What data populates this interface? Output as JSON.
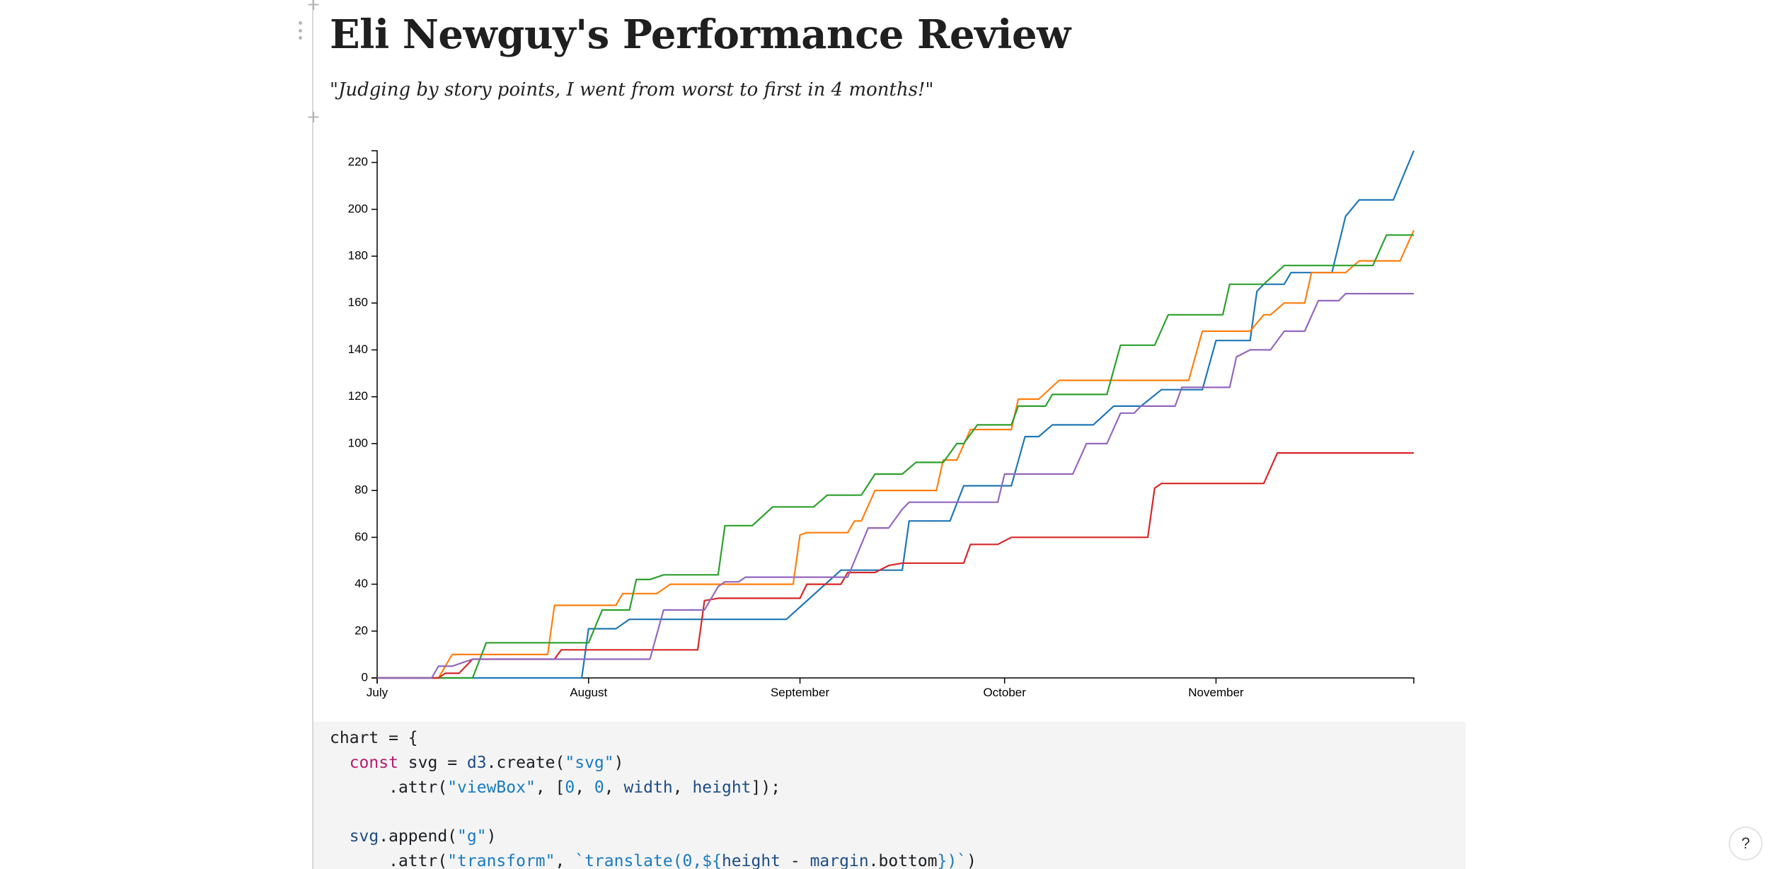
{
  "page": {
    "title": "Eli Newguy's Performance Review",
    "quote": "\"Judging by story points, I went from worst to first in 4 months!\""
  },
  "help": {
    "label": "?"
  },
  "colors": {
    "series": [
      "#1f77b4",
      "#ff7f0e",
      "#2ca02c",
      "#d62728",
      "#9467bd"
    ],
    "code_keyword": "#b41e70",
    "code_string": "#1a7bbf"
  },
  "chart_data": {
    "type": "line",
    "step": true,
    "title": "",
    "xlabel": "",
    "ylabel": "",
    "x_domain": [
      "2019-07-01",
      "2019-11-30"
    ],
    "ylim": [
      0,
      225
    ],
    "y_ticks": [
      0,
      20,
      40,
      60,
      80,
      100,
      120,
      140,
      160,
      180,
      200,
      220
    ],
    "x_ticks": [
      {
        "date": "2019-07-01",
        "label": "July"
      },
      {
        "date": "2019-08-01",
        "label": "August"
      },
      {
        "date": "2019-09-01",
        "label": "September"
      },
      {
        "date": "2019-10-01",
        "label": "October"
      },
      {
        "date": "2019-11-01",
        "label": "November"
      }
    ],
    "series": [
      {
        "color": "#1f77b4",
        "points": [
          [
            "2019-07-01",
            0
          ],
          [
            "2019-07-31",
            0
          ],
          [
            "2019-08-01",
            21
          ],
          [
            "2019-08-05",
            21
          ],
          [
            "2019-08-07",
            25
          ],
          [
            "2019-08-30",
            25
          ],
          [
            "2019-09-07",
            46
          ],
          [
            "2019-09-14",
            46
          ],
          [
            "2019-09-16",
            46
          ],
          [
            "2019-09-17",
            67
          ],
          [
            "2019-09-23",
            67
          ],
          [
            "2019-09-25",
            82
          ],
          [
            "2019-10-02",
            82
          ],
          [
            "2019-10-04",
            103
          ],
          [
            "2019-10-06",
            103
          ],
          [
            "2019-10-08",
            108
          ],
          [
            "2019-10-14",
            108
          ],
          [
            "2019-10-17",
            116
          ],
          [
            "2019-10-21",
            116
          ],
          [
            "2019-10-24",
            123
          ],
          [
            "2019-10-30",
            123
          ],
          [
            "2019-11-01",
            144
          ],
          [
            "2019-11-06",
            144
          ],
          [
            "2019-11-07",
            165
          ],
          [
            "2019-11-08",
            168
          ],
          [
            "2019-11-11",
            168
          ],
          [
            "2019-11-12",
            173
          ],
          [
            "2019-11-18",
            173
          ],
          [
            "2019-11-20",
            197
          ],
          [
            "2019-11-22",
            204
          ],
          [
            "2019-11-27",
            204
          ],
          [
            "2019-11-30",
            225
          ]
        ]
      },
      {
        "color": "#ff7f0e",
        "points": [
          [
            "2019-07-01",
            0
          ],
          [
            "2019-07-10",
            0
          ],
          [
            "2019-07-12",
            10
          ],
          [
            "2019-07-26",
            10
          ],
          [
            "2019-07-27",
            31
          ],
          [
            "2019-08-05",
            31
          ],
          [
            "2019-08-06",
            36
          ],
          [
            "2019-08-11",
            36
          ],
          [
            "2019-08-13",
            40
          ],
          [
            "2019-08-31",
            40
          ],
          [
            "2019-09-01",
            61
          ],
          [
            "2019-09-02",
            62
          ],
          [
            "2019-09-08",
            62
          ],
          [
            "2019-09-09",
            67
          ],
          [
            "2019-09-10",
            67
          ],
          [
            "2019-09-12",
            80
          ],
          [
            "2019-09-21",
            80
          ],
          [
            "2019-09-22",
            93
          ],
          [
            "2019-09-24",
            93
          ],
          [
            "2019-09-26",
            106
          ],
          [
            "2019-10-02",
            106
          ],
          [
            "2019-10-03",
            119
          ],
          [
            "2019-10-06",
            119
          ],
          [
            "2019-10-09",
            127
          ],
          [
            "2019-10-28",
            127
          ],
          [
            "2019-10-30",
            148
          ],
          [
            "2019-11-06",
            148
          ],
          [
            "2019-11-08",
            155
          ],
          [
            "2019-11-09",
            155
          ],
          [
            "2019-11-11",
            160
          ],
          [
            "2019-11-14",
            160
          ],
          [
            "2019-11-15",
            173
          ],
          [
            "2019-11-20",
            173
          ],
          [
            "2019-11-22",
            178
          ],
          [
            "2019-11-28",
            178
          ],
          [
            "2019-11-30",
            191
          ]
        ]
      },
      {
        "color": "#2ca02c",
        "points": [
          [
            "2019-07-01",
            0
          ],
          [
            "2019-07-15",
            0
          ],
          [
            "2019-07-17",
            15
          ],
          [
            "2019-08-01",
            15
          ],
          [
            "2019-08-03",
            29
          ],
          [
            "2019-08-07",
            29
          ],
          [
            "2019-08-08",
            42
          ],
          [
            "2019-08-10",
            42
          ],
          [
            "2019-08-12",
            44
          ],
          [
            "2019-08-20",
            44
          ],
          [
            "2019-08-21",
            65
          ],
          [
            "2019-08-25",
            65
          ],
          [
            "2019-08-28",
            73
          ],
          [
            "2019-09-03",
            73
          ],
          [
            "2019-09-05",
            78
          ],
          [
            "2019-09-10",
            78
          ],
          [
            "2019-09-12",
            87
          ],
          [
            "2019-09-16",
            87
          ],
          [
            "2019-09-18",
            92
          ],
          [
            "2019-09-22",
            92
          ],
          [
            "2019-09-24",
            100
          ],
          [
            "2019-09-25",
            100
          ],
          [
            "2019-09-27",
            108
          ],
          [
            "2019-10-02",
            108
          ],
          [
            "2019-10-03",
            116
          ],
          [
            "2019-10-07",
            116
          ],
          [
            "2019-10-08",
            121
          ],
          [
            "2019-10-16",
            121
          ],
          [
            "2019-10-18",
            142
          ],
          [
            "2019-10-23",
            142
          ],
          [
            "2019-10-25",
            155
          ],
          [
            "2019-11-02",
            155
          ],
          [
            "2019-11-03",
            168
          ],
          [
            "2019-11-08",
            168
          ],
          [
            "2019-11-11",
            176
          ],
          [
            "2019-11-24",
            176
          ],
          [
            "2019-11-26",
            189
          ],
          [
            "2019-11-30",
            189
          ]
        ]
      },
      {
        "color": "#d62728",
        "points": [
          [
            "2019-07-01",
            0
          ],
          [
            "2019-07-10",
            0
          ],
          [
            "2019-07-11",
            2
          ],
          [
            "2019-07-13",
            2
          ],
          [
            "2019-07-15",
            8
          ],
          [
            "2019-07-27",
            8
          ],
          [
            "2019-07-28",
            12
          ],
          [
            "2019-08-17",
            12
          ],
          [
            "2019-08-18",
            33
          ],
          [
            "2019-08-20",
            34
          ],
          [
            "2019-09-01",
            34
          ],
          [
            "2019-09-02",
            40
          ],
          [
            "2019-09-07",
            40
          ],
          [
            "2019-09-08",
            45
          ],
          [
            "2019-09-12",
            45
          ],
          [
            "2019-09-14",
            48
          ],
          [
            "2019-09-16",
            49
          ],
          [
            "2019-09-25",
            49
          ],
          [
            "2019-09-26",
            57
          ],
          [
            "2019-09-30",
            57
          ],
          [
            "2019-10-02",
            60
          ],
          [
            "2019-10-22",
            60
          ],
          [
            "2019-10-23",
            81
          ],
          [
            "2019-10-24",
            83
          ],
          [
            "2019-11-08",
            83
          ],
          [
            "2019-11-10",
            96
          ],
          [
            "2019-11-30",
            96
          ]
        ]
      },
      {
        "color": "#9467bd",
        "points": [
          [
            "2019-07-01",
            0
          ],
          [
            "2019-07-09",
            0
          ],
          [
            "2019-07-10",
            5
          ],
          [
            "2019-07-12",
            5
          ],
          [
            "2019-07-15",
            8
          ],
          [
            "2019-08-10",
            8
          ],
          [
            "2019-08-12",
            29
          ],
          [
            "2019-08-18",
            29
          ],
          [
            "2019-08-20",
            39
          ],
          [
            "2019-08-21",
            41
          ],
          [
            "2019-08-23",
            41
          ],
          [
            "2019-08-24",
            43
          ],
          [
            "2019-09-08",
            43
          ],
          [
            "2019-09-11",
            64
          ],
          [
            "2019-09-14",
            64
          ],
          [
            "2019-09-16",
            72
          ],
          [
            "2019-09-17",
            75
          ],
          [
            "2019-09-30",
            75
          ],
          [
            "2019-10-01",
            87
          ],
          [
            "2019-10-11",
            87
          ],
          [
            "2019-10-13",
            100
          ],
          [
            "2019-10-16",
            100
          ],
          [
            "2019-10-18",
            113
          ],
          [
            "2019-10-20",
            113
          ],
          [
            "2019-10-21",
            116
          ],
          [
            "2019-10-26",
            116
          ],
          [
            "2019-10-27",
            124
          ],
          [
            "2019-11-03",
            124
          ],
          [
            "2019-11-04",
            137
          ],
          [
            "2019-11-06",
            140
          ],
          [
            "2019-11-09",
            140
          ],
          [
            "2019-11-11",
            148
          ],
          [
            "2019-11-14",
            148
          ],
          [
            "2019-11-16",
            161
          ],
          [
            "2019-11-19",
            161
          ],
          [
            "2019-11-20",
            164
          ],
          [
            "2019-11-30",
            164
          ]
        ]
      }
    ]
  },
  "code": {
    "line1": "chart = {",
    "line2_kw": "const",
    "line2_a": " svg = ",
    "line2_obj": "d3",
    "line2_b": ".create(",
    "line2_str": "\"svg\"",
    "line2_c": ")",
    "line3_a": "    .attr(",
    "line3_str": "\"viewBox\"",
    "line3_b": ", [",
    "line3_n1": "0",
    "line3_c": ", ",
    "line3_n2": "0",
    "line3_d": ", ",
    "line3_w": "width",
    "line3_e": ", ",
    "line3_h": "height",
    "line3_f": "]);",
    "line5_obj": "svg",
    "line5_a": ".append(",
    "line5_str": "\"g\"",
    "line5_b": ")",
    "line6_a": "    .attr(",
    "line6_str": "\"transform\"",
    "line6_b": ", ",
    "line6_tpl1": "`translate(0,${",
    "line6_h": "height",
    "line6_c": " - ",
    "line6_m": "margin",
    "line6_d": ".bottom",
    "line6_tpl2": "})`",
    "line6_e": ")"
  }
}
